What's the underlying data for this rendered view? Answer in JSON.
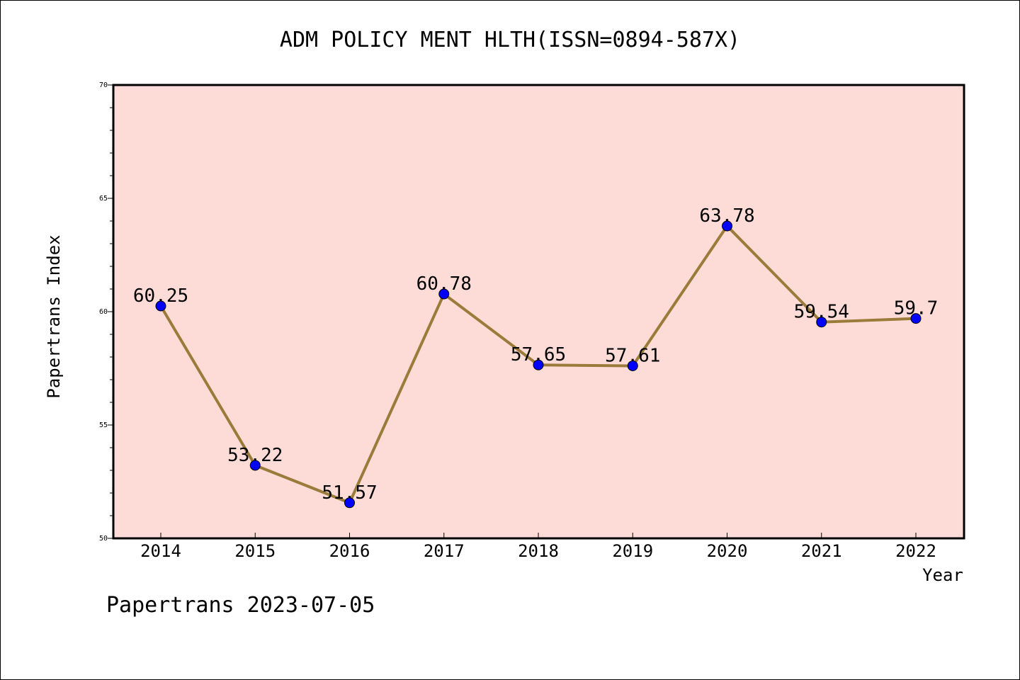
{
  "chart_data": {
    "type": "line",
    "title": "ADM POLICY MENT HLTH(ISSN=0894-587X)",
    "xlabel": "Year",
    "ylabel": "Papertrans Index",
    "categories": [
      "2014",
      "2015",
      "2016",
      "2017",
      "2018",
      "2019",
      "2020",
      "2021",
      "2022"
    ],
    "values": [
      60.25,
      53.22,
      51.57,
      60.78,
      57.65,
      57.61,
      63.78,
      59.54,
      59.7
    ],
    "data_labels": [
      "60.25",
      "53.22",
      "51.57",
      "60.78",
      "57.65",
      "57.61",
      "63.78",
      "59.54",
      "59.7"
    ],
    "ylim": [
      50,
      70
    ],
    "yticks": [
      "50",
      "55",
      "60",
      "65",
      "70"
    ],
    "grid": false,
    "line_color": "#9a7b3a",
    "marker_color": "#0000ff",
    "plot_background": "#fddcd8"
  },
  "footer": "Papertrans 2023-07-05"
}
